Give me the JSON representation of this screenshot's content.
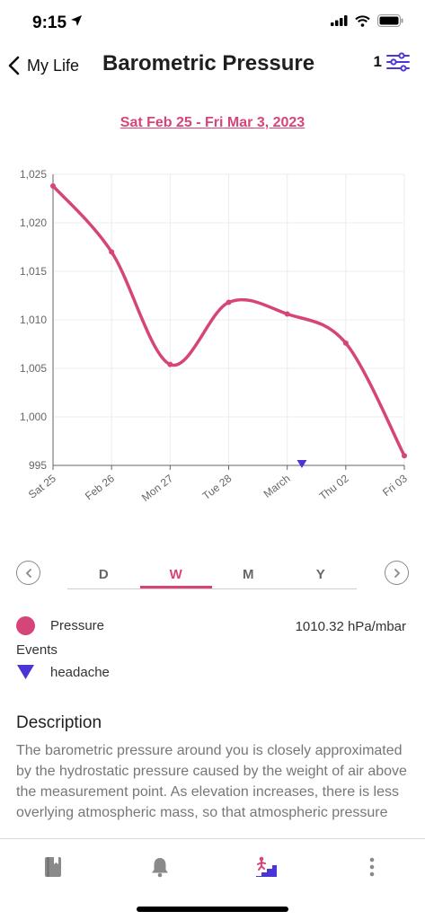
{
  "status_bar": {
    "time": "9:15"
  },
  "header": {
    "back_label": "My Life",
    "title": "Barometric Pressure",
    "filter_count": "1"
  },
  "date_range": "Sat Feb 25 - Fri Mar 3, 2023",
  "chart_data": {
    "type": "line",
    "x": [
      "Sat 25",
      "Feb 26",
      "Mon 27",
      "Tue 28",
      "March",
      "Thu 02",
      "Fri 03"
    ],
    "series": [
      {
        "name": "Pressure",
        "values": [
          1023.8,
          1017.0,
          1005.4,
          1011.8,
          1010.6,
          1007.6,
          996.0
        ]
      }
    ],
    "events": [
      {
        "name": "headache",
        "x_index": 4.25,
        "value": 995
      }
    ],
    "yticks": [
      "1,025",
      "1,020",
      "1,015",
      "1,010",
      "1,005",
      "1,000",
      "995"
    ],
    "ylim": [
      995,
      1025
    ],
    "xlabel": "",
    "ylabel": "",
    "grid": true,
    "colors": {
      "line": "#d6457a",
      "event": "#4a35d6",
      "grid": "#ececec",
      "axis": "#666666"
    }
  },
  "periods": {
    "day": "D",
    "week": "W",
    "month": "M",
    "year": "Y",
    "active": "W"
  },
  "legend": {
    "pressure_label": "Pressure",
    "pressure_value": "1010.32 hPa/mbar",
    "events_heading": "Events",
    "event_label": "headache"
  },
  "description": {
    "title": "Description",
    "body": "The barometric pressure around you is closely approximated by the hydrostatic pressure caused by the weight of air above the measurement point. As elevation increases, there is less overlying atmospheric mass, so that atmospheric pressure"
  },
  "bottom_nav": [
    "journal-icon",
    "bell-icon",
    "climbing-stairs-icon",
    "more-vertical-icon"
  ]
}
